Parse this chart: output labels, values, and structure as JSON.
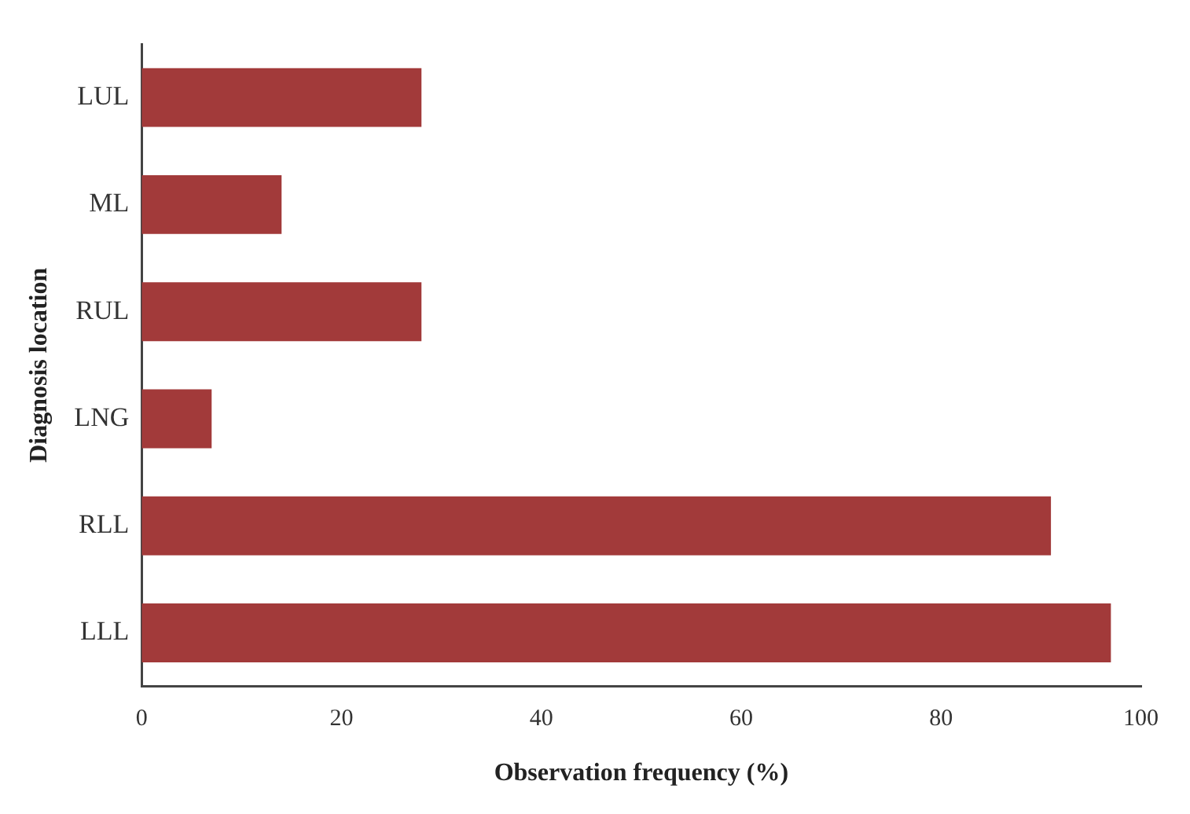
{
  "chart_data": {
    "type": "bar",
    "orientation": "horizontal",
    "xlabel": "Observation frequency (%)",
    "ylabel": "Diagnosis location",
    "categories": [
      "LUL",
      "ML",
      "RUL",
      "LNG",
      "RLL",
      "LLL"
    ],
    "values": [
      28,
      14,
      28,
      7,
      91,
      97
    ],
    "color": "#a23a3a",
    "xlim": [
      0,
      100
    ],
    "xticks": [
      0,
      20,
      40,
      60,
      80,
      100
    ],
    "grid": false,
    "legend": false
  }
}
